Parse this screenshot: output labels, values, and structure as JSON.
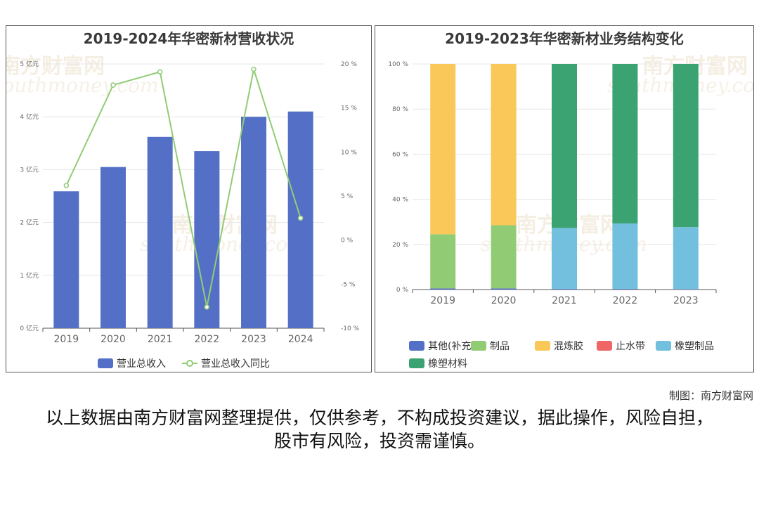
{
  "chart_data": [
    {
      "type": "bar",
      "title": "2019-2024年华密新材营收状况",
      "categories": [
        "2019",
        "2020",
        "2021",
        "2022",
        "2023",
        "2024"
      ],
      "series": [
        {
          "name": "营业总收入",
          "type": "bar",
          "axis": "left",
          "values": [
            2.59,
            3.05,
            3.62,
            3.35,
            4.0,
            4.1
          ],
          "color": "#5470c6"
        },
        {
          "name": "营业总收入同比",
          "type": "line",
          "axis": "right",
          "values": [
            6.2,
            17.6,
            19.1,
            -7.6,
            19.4,
            2.5
          ],
          "color": "#91cc75"
        }
      ],
      "ylim": [
        0,
        5
      ],
      "y_ticks": [
        "0 亿元",
        "1 亿元",
        "2 亿元",
        "3 亿元",
        "4 亿元",
        "5 亿元"
      ],
      "y2lim": [
        -10,
        20
      ],
      "y2_ticks": [
        "-10 %",
        "-5 %",
        "0 %",
        "5 %",
        "10 %",
        "15 %",
        "20 %"
      ],
      "grid": true,
      "legend_position": "bottom"
    },
    {
      "type": "bar",
      "stacked": true,
      "title": "2019-2023年华密新材业务结构变化",
      "categories": [
        "2019",
        "2020",
        "2021",
        "2022",
        "2023"
      ],
      "series": [
        {
          "name": "其他(补充)",
          "values": [
            0.5,
            0.5,
            0.3,
            0.3,
            0.2
          ],
          "color": "#5470c6"
        },
        {
          "name": "制品",
          "values": [
            24.0,
            28.0,
            0,
            0,
            0
          ],
          "color": "#91cc75"
        },
        {
          "name": "混炼胶",
          "values": [
            75.5,
            71.5,
            0,
            0,
            0
          ],
          "color": "#fac858"
        },
        {
          "name": "止水带",
          "values": [
            0,
            0,
            0,
            0,
            0
          ],
          "color": "#ee6666"
        },
        {
          "name": "橡塑制品",
          "values": [
            0,
            0,
            27.0,
            29.0,
            27.5
          ],
          "color": "#73c0de"
        },
        {
          "name": "橡塑材料",
          "values": [
            0,
            0,
            72.7,
            70.7,
            72.3
          ],
          "color": "#3ba272"
        }
      ],
      "ylim": [
        0,
        100
      ],
      "y_ticks": [
        "0 %",
        "20 %",
        "40 %",
        "60 %",
        "80 %",
        "100 %"
      ],
      "grid": true,
      "legend_position": "bottom"
    }
  ],
  "watermark": {
    "cn": "南方财富网",
    "en": "southmoney.com"
  },
  "footer": {
    "credit": "制图：南方财富网",
    "disclaimer": "以上数据由南方财富网整理提供，仅供参考，不构成投资建议，据此操作，风险自担，股市有风险，投资需谨慎。"
  }
}
